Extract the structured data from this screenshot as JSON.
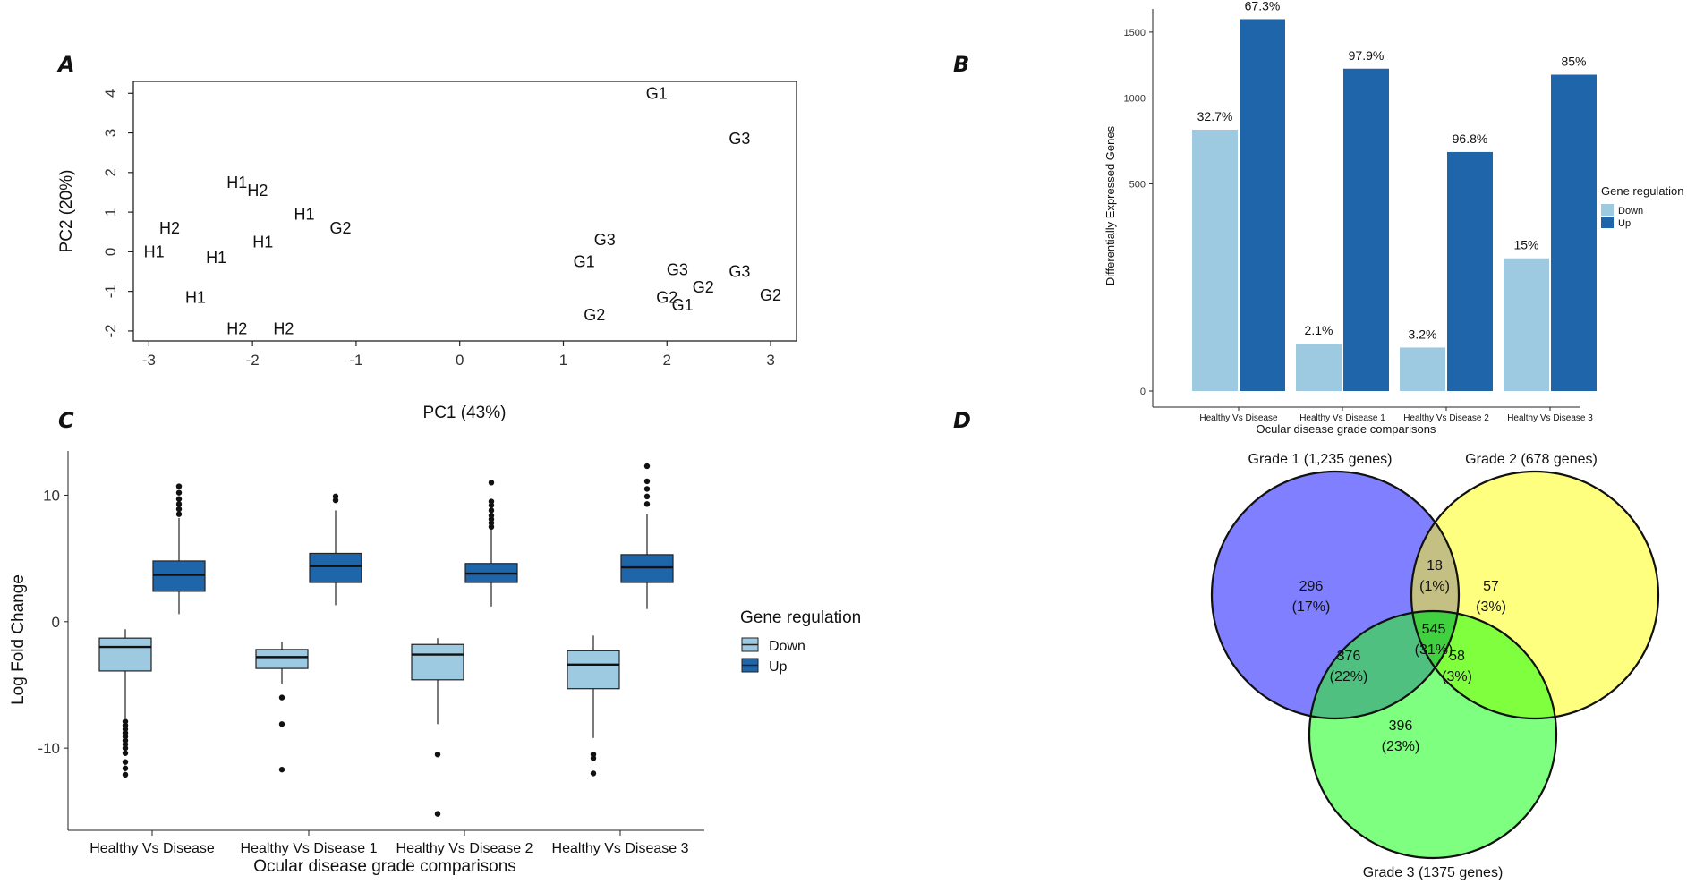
{
  "colors": {
    "down": "#9ecae1",
    "up": "#1f65aa",
    "grade1": "#7f7fff",
    "grade2": "#ffff7f",
    "grade3": "#7fff7f",
    "g12": "#c4bf82",
    "g23": "#80ff3f",
    "g13": "#4fc080",
    "g123": "#40d040"
  },
  "chart_data": [
    {
      "panel": "A",
      "type": "scatter",
      "xlabel": "PC1 (43%)",
      "ylabel": "PC2 (20%)",
      "xlim": [
        -3.15,
        3.25
      ],
      "ylim": [
        -2.25,
        4.3
      ],
      "xticks": [
        -3,
        -2,
        -1,
        0,
        1,
        2,
        3
      ],
      "yticks": [
        -2,
        -1,
        0,
        1,
        2,
        3,
        4
      ],
      "points": [
        {
          "x": 1.9,
          "y": 4.0,
          "label": "G1"
        },
        {
          "x": 2.7,
          "y": 2.85,
          "label": "G3"
        },
        {
          "x": -2.15,
          "y": 1.75,
          "label": "H1"
        },
        {
          "x": -1.95,
          "y": 1.55,
          "label": "H2"
        },
        {
          "x": -1.5,
          "y": 0.95,
          "label": "H1"
        },
        {
          "x": -1.15,
          "y": 0.6,
          "label": "G2"
        },
        {
          "x": -2.8,
          "y": 0.6,
          "label": "H2"
        },
        {
          "x": -1.9,
          "y": 0.25,
          "label": "H1"
        },
        {
          "x": -2.95,
          "y": 0.0,
          "label": "H1"
        },
        {
          "x": -2.35,
          "y": -0.15,
          "label": "H1"
        },
        {
          "x": 1.4,
          "y": 0.3,
          "label": "G3"
        },
        {
          "x": 1.2,
          "y": -0.25,
          "label": "G1"
        },
        {
          "x": 2.1,
          "y": -0.45,
          "label": "G3"
        },
        {
          "x": 2.7,
          "y": -0.5,
          "label": "G3"
        },
        {
          "x": 2.35,
          "y": -0.9,
          "label": "G2"
        },
        {
          "x": 3.0,
          "y": -1.1,
          "label": "G2"
        },
        {
          "x": 2.0,
          "y": -1.15,
          "label": "G2"
        },
        {
          "x": 2.15,
          "y": -1.35,
          "label": "G1"
        },
        {
          "x": -2.55,
          "y": -1.15,
          "label": "H1"
        },
        {
          "x": 1.3,
          "y": -1.6,
          "label": "G2"
        },
        {
          "x": -2.15,
          "y": -1.95,
          "label": "H2"
        },
        {
          "x": -1.7,
          "y": -1.95,
          "label": "H2"
        }
      ]
    },
    {
      "panel": "B",
      "type": "bar",
      "xlabel": "Ocular disease grade comparisons",
      "ylabel": "Differentially Expressed Genes",
      "yticks": [
        0,
        500,
        1000,
        1500
      ],
      "y_scale": "sqrt",
      "categories": [
        "Healthy Vs Disease",
        "Healthy Vs Disease 1",
        "Healthy Vs Disease 2",
        "Healthy Vs Disease 3"
      ],
      "series": [
        {
          "name": "Down",
          "values": [
            795,
            26,
            22,
            205
          ],
          "labels": [
            "32.7%",
            "2.1%",
            "3.2%",
            "15%"
          ]
        },
        {
          "name": "Up",
          "values": [
            1610,
            1210,
            665,
            1165
          ],
          "labels": [
            "67.3%",
            "97.9%",
            "96.8%",
            "85%"
          ]
        }
      ],
      "legend_title": "Gene regulation",
      "legend": [
        "Down",
        "Up"
      ]
    },
    {
      "panel": "C",
      "type": "box",
      "xlabel": "Ocular disease grade comparisons",
      "ylabel": "Log Fold Change",
      "ylim": [
        -16.5,
        13.5
      ],
      "yticks": [
        -10,
        0,
        10
      ],
      "categories": [
        "Healthy Vs Disease",
        "Healthy Vs Disease 1",
        "Healthy Vs Disease 2",
        "Healthy Vs Disease 3"
      ],
      "legend_title": "Gene regulation",
      "legend": [
        "Down",
        "Up"
      ],
      "boxes": [
        {
          "group": 0,
          "series": "Down",
          "whisker_low": -7.6,
          "q1": -3.9,
          "median": -2.0,
          "q3": -1.3,
          "whisker_high": -0.6,
          "outliers": [
            -7.9,
            -8.2,
            -8.5,
            -8.8,
            -9.1,
            -9.4,
            -9.7,
            -10.0,
            -10.4,
            -11.1,
            -11.6,
            -12.1
          ]
        },
        {
          "group": 0,
          "series": "Up",
          "whisker_low": 0.6,
          "q1": 2.4,
          "median": 3.7,
          "q3": 4.8,
          "whisker_high": 8.2,
          "outliers": [
            8.5,
            8.9,
            9.3,
            9.7,
            10.2,
            10.7
          ]
        },
        {
          "group": 1,
          "series": "Down",
          "whisker_low": -4.9,
          "q1": -3.7,
          "median": -2.8,
          "q3": -2.2,
          "whisker_high": -1.6,
          "outliers": [
            -6.0,
            -8.1,
            -11.7
          ]
        },
        {
          "group": 1,
          "series": "Up",
          "whisker_low": 1.3,
          "q1": 3.1,
          "median": 4.4,
          "q3": 5.4,
          "whisker_high": 8.8,
          "outliers": [
            9.6,
            9.9
          ]
        },
        {
          "group": 2,
          "series": "Down",
          "whisker_low": -8.1,
          "q1": -4.6,
          "median": -2.6,
          "q3": -1.8,
          "whisker_high": -1.3,
          "outliers": [
            -10.5,
            -15.2
          ]
        },
        {
          "group": 2,
          "series": "Up",
          "whisker_low": 1.2,
          "q1": 3.1,
          "median": 3.8,
          "q3": 4.6,
          "whisker_high": 7.3,
          "outliers": [
            7.5,
            7.8,
            8.1,
            8.4,
            8.8,
            9.2,
            9.5,
            11.0
          ]
        },
        {
          "group": 3,
          "series": "Down",
          "whisker_low": -9.2,
          "q1": -5.3,
          "median": -3.4,
          "q3": -2.3,
          "whisker_high": -1.1,
          "outliers": [
            -10.5,
            -10.8,
            -12.0
          ]
        },
        {
          "group": 3,
          "series": "Up",
          "whisker_low": 1.0,
          "q1": 3.1,
          "median": 4.3,
          "q3": 5.3,
          "whisker_high": 8.5,
          "outliers": [
            9.3,
            9.9,
            10.5,
            11.1,
            12.3
          ]
        }
      ]
    },
    {
      "panel": "D",
      "type": "venn",
      "sets": [
        "Grade 1 (1,235 genes)",
        "Grade 2 (678 genes)",
        "Grade 3 (1375 genes)"
      ],
      "regions": [
        {
          "id": "g1_only",
          "count": "296",
          "pct": "(17%)"
        },
        {
          "id": "g1_g2",
          "count": "18",
          "pct": "(1%)"
        },
        {
          "id": "g2_only",
          "count": "57",
          "pct": "(3%)"
        },
        {
          "id": "g1_g2_g3",
          "count": "545",
          "pct": "(31%)"
        },
        {
          "id": "g1_g3",
          "count": "376",
          "pct": "(22%)"
        },
        {
          "id": "g2_g3",
          "count": "58",
          "pct": "(3%)"
        },
        {
          "id": "g3_only",
          "count": "396",
          "pct": "(23%)"
        }
      ]
    }
  ],
  "panels": {
    "a": "A",
    "b": "B",
    "c": "C",
    "d": "D"
  }
}
